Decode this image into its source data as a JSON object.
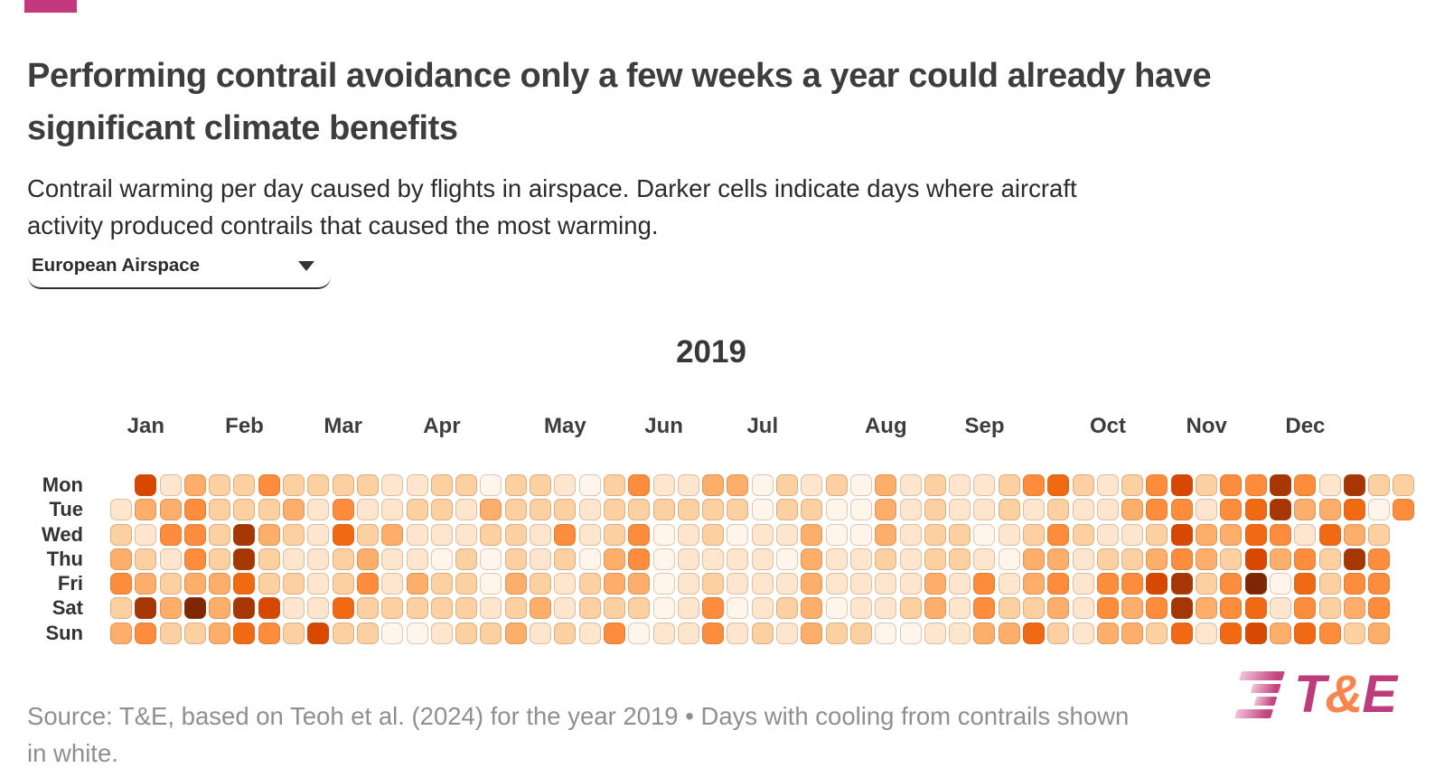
{
  "brand_color": "#c4397e",
  "header": {
    "title": "Performing contrail avoidance only a few weeks a year could already have significant climate benefits",
    "subtitle": "Contrail warming per day caused by flights in airspace. Darker cells indicate days where aircraft activity produced contrails that caused the most warming."
  },
  "controls": {
    "airspace_selector": {
      "value": "European Airspace",
      "icon": "caret-down-icon"
    }
  },
  "chart_data": {
    "type": "heatmap",
    "title": "2019",
    "layout": "calendar: 53 week columns x 7 weekday rows, one cell per day of 2019",
    "weeks": 53,
    "months": [
      {
        "label": "Jan",
        "week": 2
      },
      {
        "label": "Feb",
        "week": 6
      },
      {
        "label": "Mar",
        "week": 10
      },
      {
        "label": "Apr",
        "week": 14
      },
      {
        "label": "May",
        "week": 19
      },
      {
        "label": "Jun",
        "week": 23
      },
      {
        "label": "Jul",
        "week": 27
      },
      {
        "label": "Aug",
        "week": 32
      },
      {
        "label": "Sep",
        "week": 36
      },
      {
        "label": "Oct",
        "week": 41
      },
      {
        "label": "Nov",
        "week": 45
      },
      {
        "label": "Dec",
        "week": 49
      }
    ],
    "value_scale": "warming level per day, 0 = white (cooling days) to 8 = darkest (most warming); null = no day in that week column",
    "palette": [
      "#fff5eb",
      "#fee6ce",
      "#fdd0a2",
      "#fdae6b",
      "#fd8d3c",
      "#f16913",
      "#d94801",
      "#a63603",
      "#7f2704"
    ],
    "series": [
      {
        "name": "Mon",
        "values": [
          null,
          6,
          1,
          3,
          2,
          2,
          4,
          2,
          2,
          2,
          2,
          1,
          1,
          2,
          2,
          0,
          2,
          2,
          1,
          0,
          2,
          4,
          1,
          1,
          3,
          3,
          0,
          2,
          1,
          2,
          0,
          3,
          1,
          2,
          1,
          1,
          2,
          4,
          5,
          2,
          1,
          2,
          4,
          6,
          2,
          4,
          4,
          7,
          4,
          1,
          7,
          2,
          2
        ]
      },
      {
        "name": "Tue",
        "values": [
          1,
          3,
          3,
          4,
          2,
          2,
          2,
          3,
          1,
          4,
          1,
          1,
          2,
          2,
          1,
          3,
          2,
          2,
          2,
          1,
          2,
          2,
          2,
          2,
          2,
          2,
          0,
          2,
          2,
          0,
          0,
          3,
          1,
          2,
          1,
          1,
          2,
          1,
          2,
          1,
          1,
          3,
          4,
          4,
          1,
          4,
          5,
          7,
          3,
          3,
          5,
          0,
          4
        ]
      },
      {
        "name": "Wed",
        "values": [
          2,
          1,
          4,
          4,
          2,
          7,
          3,
          2,
          1,
          5,
          2,
          3,
          1,
          1,
          1,
          2,
          2,
          1,
          4,
          1,
          2,
          4,
          0,
          1,
          2,
          0,
          1,
          1,
          3,
          0,
          0,
          3,
          1,
          2,
          2,
          0,
          1,
          2,
          4,
          2,
          1,
          1,
          2,
          6,
          3,
          3,
          5,
          4,
          1,
          5,
          3,
          2,
          null
        ]
      },
      {
        "name": "Thu",
        "values": [
          3,
          2,
          1,
          4,
          2,
          7,
          2,
          1,
          1,
          2,
          3,
          1,
          1,
          0,
          2,
          0,
          2,
          1,
          2,
          0,
          3,
          4,
          0,
          1,
          1,
          1,
          1,
          0,
          3,
          1,
          1,
          2,
          1,
          2,
          2,
          1,
          0,
          3,
          3,
          1,
          2,
          2,
          3,
          4,
          3,
          2,
          6,
          3,
          4,
          2,
          7,
          4,
          null
        ]
      },
      {
        "name": "Fri",
        "values": [
          4,
          3,
          2,
          3,
          3,
          5,
          2,
          2,
          1,
          2,
          4,
          1,
          3,
          2,
          2,
          0,
          3,
          2,
          1,
          2,
          3,
          3,
          0,
          1,
          2,
          1,
          1,
          1,
          3,
          1,
          1,
          1,
          1,
          3,
          1,
          4,
          1,
          3,
          4,
          1,
          4,
          4,
          6,
          7,
          2,
          4,
          8,
          0,
          5,
          2,
          4,
          4,
          null
        ]
      },
      {
        "name": "Sat",
        "values": [
          2,
          7,
          3,
          8,
          3,
          7,
          6,
          1,
          1,
          5,
          2,
          2,
          2,
          2,
          2,
          1,
          2,
          3,
          1,
          2,
          2,
          2,
          0,
          1,
          4,
          0,
          1,
          2,
          3,
          0,
          1,
          1,
          2,
          3,
          1,
          4,
          2,
          2,
          3,
          1,
          4,
          3,
          4,
          7,
          3,
          4,
          5,
          1,
          4,
          2,
          3,
          4,
          null
        ]
      },
      {
        "name": "Sun",
        "values": [
          3,
          4,
          2,
          2,
          3,
          5,
          4,
          2,
          6,
          2,
          2,
          0,
          0,
          1,
          2,
          2,
          3,
          1,
          2,
          1,
          4,
          0,
          1,
          1,
          4,
          1,
          2,
          1,
          3,
          2,
          2,
          0,
          0,
          1,
          1,
          3,
          3,
          5,
          2,
          1,
          3,
          3,
          2,
          5,
          1,
          5,
          6,
          3,
          5,
          4,
          2,
          3,
          null
        ]
      }
    ]
  },
  "footer": {
    "source": "Source: T&E, based on Teoh et al. (2024) for the year 2019 • Days with cooling from contrails shown in white.",
    "logo": {
      "parts": [
        "T",
        "&",
        "E"
      ],
      "magenta": "#bc3c7c",
      "orange": "#f9854e"
    }
  }
}
